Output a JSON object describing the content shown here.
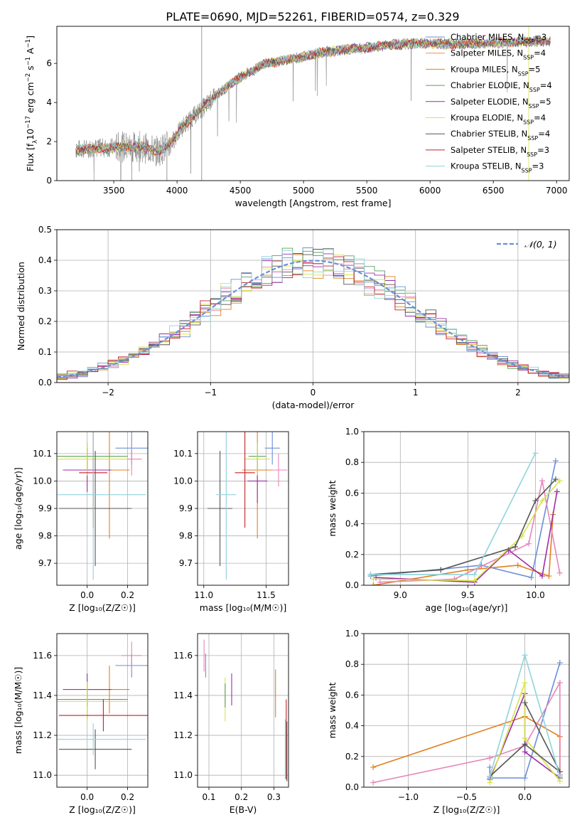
{
  "title": "PLATE=0690, MJD=52261, FIBERID=0574, z=0.329",
  "colors": {
    "c1": "#6a8fd6",
    "c2": "#f28e5a",
    "c3": "#e0801f",
    "c4": "#5c9f5c",
    "c5": "#9a2fa8",
    "c6": "#d7e34a",
    "c7": "#555555",
    "c8": "#c0202a",
    "c9": "#8fd3dc",
    "pink": "#e585b8",
    "gray": "#7f7f7f"
  },
  "chart_data": [
    {
      "type": "line",
      "xlabel": "wavelength [Angstrom, rest frame]",
      "ylabel_parts": {
        "a": "Flux [f",
        "sub": "λ",
        "b": "10",
        "sup1": "−17",
        "c": " erg cm",
        "sup2": "−2",
        "d": " s",
        "sup3": "−1",
        "e": " A",
        "sup4": "−1",
        "f": "]"
      },
      "xlim": [
        3050,
        7100
      ],
      "ylim": [
        0,
        7.9
      ],
      "xticks": [
        "3500",
        "4000",
        "4500",
        "5000",
        "5500",
        "6000",
        "6500",
        "7000"
      ],
      "yticks": [
        "0",
        "2",
        "4",
        "6"
      ],
      "legend_position": "right",
      "legend": [
        {
          "name": "Chabrier MILES, N",
          "sub": "SSP",
          "tail": "=3"
        },
        {
          "name": "Salpeter MILES, N",
          "sub": "SSP",
          "tail": "=4"
        },
        {
          "name": "Kroupa MILES, N",
          "sub": "SSP",
          "tail": "=5"
        },
        {
          "name": "Chabrier ELODIE, N",
          "sub": "SSP",
          "tail": "=4"
        },
        {
          "name": "Salpeter ELODIE, N",
          "sub": "SSP",
          "tail": "=5"
        },
        {
          "name": "Kroupa ELODIE, N",
          "sub": "SSP",
          "tail": "=4"
        },
        {
          "name": "Chabrier STELIB, N",
          "sub": "SSP",
          "tail": "=4"
        },
        {
          "name": "Salpeter STELIB, N",
          "sub": "SSP",
          "tail": "=3"
        },
        {
          "name": "Kroupa STELIB, N",
          "sub": "SSP",
          "tail": "=3"
        }
      ],
      "continuum": [
        [
          3200,
          1.6
        ],
        [
          3500,
          1.7
        ],
        [
          3700,
          1.75
        ],
        [
          3850,
          1.5
        ],
        [
          3950,
          1.9
        ],
        [
          4050,
          2.8
        ],
        [
          4200,
          3.7
        ],
        [
          4350,
          4.6
        ],
        [
          4500,
          5.3
        ],
        [
          4700,
          6.0
        ],
        [
          4900,
          6.2
        ],
        [
          5100,
          6.5
        ],
        [
          5300,
          6.7
        ],
        [
          5500,
          6.8
        ],
        [
          5700,
          6.95
        ],
        [
          5900,
          7.05
        ],
        [
          6100,
          7.0
        ],
        [
          6300,
          7.0
        ],
        [
          6500,
          7.05
        ],
        [
          6700,
          7.1
        ],
        [
          6950,
          7.15
        ]
      ]
    },
    {
      "type": "line",
      "xlabel": "(data-model)/error",
      "ylabel": "Normed distribution",
      "xlim": [
        -2.5,
        2.5
      ],
      "ylim": [
        0,
        0.5
      ],
      "xticks": [
        "−2",
        "−1",
        "0",
        "1",
        "2"
      ],
      "yticks": [
        "0.0",
        "0.1",
        "0.2",
        "0.3",
        "0.4",
        "0.5"
      ],
      "legend_label": "𝒩(0, 1)",
      "legend_position": "top-right",
      "gaussian": {
        "mean": 0,
        "sigma": 1
      }
    },
    {
      "type": "scatter",
      "xlabel": "Z [log₁₀(Z/Z☉)]",
      "ylabel": "age  [log₁₀(age/yr)]",
      "xlim": [
        -0.15,
        0.3
      ],
      "ylim": [
        9.62,
        10.18
      ],
      "xticks": [
        "0.0",
        "0.2"
      ],
      "yticks": [
        "9.7",
        "9.8",
        "9.9",
        "10.0",
        "10.1"
      ],
      "points": [
        {
          "x": 0.22,
          "y": 10.12,
          "xe": 0.08,
          "ye": 0.06,
          "c": "c1"
        },
        {
          "x": 0.22,
          "y": 10.08,
          "xe": 0.05,
          "ye": 0.06,
          "c": "pink"
        },
        {
          "x": 0.11,
          "y": 10.04,
          "xe": 0.1,
          "ye": 0.25,
          "c": "c3"
        },
        {
          "x": 0.0,
          "y": 10.09,
          "xe": 0.2,
          "ye": 0.05,
          "c": "c4"
        },
        {
          "x": 0.0,
          "y": 10.04,
          "xe": 0.12,
          "ye": 0.08,
          "c": "c5"
        },
        {
          "x": 0.0,
          "y": 10.08,
          "xe": 0.2,
          "ye": 0.06,
          "c": "c6"
        },
        {
          "x": 0.04,
          "y": 9.9,
          "xe": 0.18,
          "ye": 0.21,
          "c": "c7"
        },
        {
          "x": 0.03,
          "y": 10.03,
          "xe": 0.07,
          "ye": 0.2,
          "c": "c8"
        },
        {
          "x": 0.03,
          "y": 9.95,
          "xe": 0.26,
          "ye": 0.31,
          "c": "c9"
        }
      ]
    },
    {
      "type": "scatter",
      "xlabel": "mass [log₁₀(M/M☉)]",
      "ylabel": "",
      "xlim": [
        10.95,
        11.68
      ],
      "ylim": [
        9.62,
        10.18
      ],
      "xticks": [
        "11.0",
        "11.5"
      ],
      "yticks": [
        "9.7",
        "9.8",
        "9.9",
        "10.0",
        "10.1"
      ],
      "points": [
        {
          "x": 11.55,
          "y": 10.12,
          "xe": 0.06,
          "ye": 0.06,
          "c": "c1"
        },
        {
          "x": 11.6,
          "y": 10.04,
          "xe": 0.07,
          "ye": 0.06,
          "c": "pink"
        },
        {
          "x": 11.43,
          "y": 10.04,
          "xe": 0.12,
          "ye": 0.25,
          "c": "c3"
        },
        {
          "x": 11.43,
          "y": 10.09,
          "xe": 0.07,
          "ye": 0.05,
          "c": "c4"
        },
        {
          "x": 11.43,
          "y": 10.0,
          "xe": 0.08,
          "ye": 0.08,
          "c": "c5"
        },
        {
          "x": 11.43,
          "y": 10.08,
          "xe": 0.1,
          "ye": 0.06,
          "c": "c6"
        },
        {
          "x": 11.13,
          "y": 9.9,
          "xe": 0.1,
          "ye": 0.21,
          "c": "c7"
        },
        {
          "x": 11.33,
          "y": 10.03,
          "xe": 0.08,
          "ye": 0.2,
          "c": "c8"
        },
        {
          "x": 11.18,
          "y": 9.95,
          "xe": 0.08,
          "ye": 0.31,
          "c": "c9"
        }
      ]
    },
    {
      "type": "line",
      "xlabel": "age  [log₁₀(age/yr)]",
      "ylabel": "mass weight",
      "xlim": [
        8.73,
        10.25
      ],
      "ylim": [
        0,
        1
      ],
      "xticks": [
        "9.0",
        "9.5",
        "10.0"
      ],
      "yticks": [
        "0.0",
        "0.2",
        "0.4",
        "0.6",
        "0.8",
        "1.0"
      ],
      "series": [
        {
          "c": "c1",
          "pts": [
            [
              8.78,
              0.06
            ],
            [
              9.6,
              0.13
            ],
            [
              9.97,
              0.05
            ],
            [
              10.15,
              0.81
            ]
          ]
        },
        {
          "c": "c3",
          "pts": [
            [
              8.8,
              0.0
            ],
            [
              9.5,
              0.1
            ],
            [
              9.87,
              0.13
            ],
            [
              10.1,
              0.06
            ],
            [
              10.13,
              0.46
            ]
          ]
        },
        {
          "c": "pink",
          "pts": [
            [
              8.85,
              0.02
            ],
            [
              9.4,
              0.04
            ],
            [
              9.95,
              0.27
            ],
            [
              10.05,
              0.68
            ],
            [
              10.18,
              0.08
            ]
          ]
        },
        {
          "c": "c5",
          "pts": [
            [
              8.82,
              0.05
            ],
            [
              9.55,
              0.02
            ],
            [
              9.8,
              0.23
            ],
            [
              10.05,
              0.06
            ],
            [
              10.16,
              0.61
            ]
          ]
        },
        {
          "c": "c6",
          "pts": [
            [
              8.8,
              0.04
            ],
            [
              9.55,
              0.03
            ],
            [
              9.9,
              0.32
            ],
            [
              10.05,
              0.55
            ],
            [
              10.18,
              0.68
            ]
          ]
        },
        {
          "c": "c7",
          "pts": [
            [
              8.78,
              0.07
            ],
            [
              9.3,
              0.1
            ],
            [
              9.85,
              0.25
            ],
            [
              10.0,
              0.55
            ],
            [
              10.15,
              0.69
            ]
          ]
        },
        {
          "c": "c9",
          "pts": [
            [
              8.78,
              0.07
            ],
            [
              9.55,
              0.07
            ],
            [
              10.0,
              0.86
            ]
          ]
        }
      ]
    },
    {
      "type": "scatter",
      "xlabel": "Z [log₁₀(Z/Z☉)]",
      "ylabel": "mass [log₁₀(M/M☉)]",
      "xlim": [
        -0.15,
        0.3
      ],
      "ylim": [
        10.94,
        11.71
      ],
      "xticks": [
        "0.0",
        "0.2"
      ],
      "yticks": [
        "11.0",
        "11.2",
        "11.4",
        "11.6"
      ],
      "points": [
        {
          "x": 0.22,
          "y": 11.55,
          "xe": 0.08,
          "ye": 0.06,
          "c": "c1"
        },
        {
          "x": 0.22,
          "y": 11.6,
          "xe": 0.05,
          "ye": 0.07,
          "c": "pink"
        },
        {
          "x": 0.11,
          "y": 11.43,
          "xe": 0.1,
          "ye": 0.12,
          "c": "c3"
        },
        {
          "x": 0.0,
          "y": 11.38,
          "xe": 0.2,
          "ye": 0.1,
          "c": "c4"
        },
        {
          "x": 0.0,
          "y": 11.43,
          "xe": 0.12,
          "ye": 0.08,
          "c": "c5"
        },
        {
          "x": 0.0,
          "y": 11.37,
          "xe": 0.2,
          "ye": 0.1,
          "c": "c6"
        },
        {
          "x": 0.04,
          "y": 11.13,
          "xe": 0.18,
          "ye": 0.1,
          "c": "c7"
        },
        {
          "x": 0.08,
          "y": 11.3,
          "xe": 0.22,
          "ye": 0.08,
          "c": "c8"
        },
        {
          "x": 0.03,
          "y": 11.18,
          "xe": 0.26,
          "ye": 0.08,
          "c": "c9"
        }
      ]
    },
    {
      "type": "scatter",
      "xlabel": "E(B-V)",
      "ylabel": "",
      "xlim": [
        0.065,
        0.345
      ],
      "ylim": [
        10.94,
        11.71
      ],
      "xticks": [
        "0.1",
        "0.2",
        "0.3"
      ],
      "yticks": [
        "11.0",
        "11.2",
        "11.4",
        "11.6"
      ],
      "points": [
        {
          "x": 0.085,
          "y": 11.6,
          "ye": 0.08,
          "c": "pink"
        },
        {
          "x": 0.09,
          "y": 11.55,
          "ye": 0.06,
          "c": "c1"
        },
        {
          "x": 0.15,
          "y": 11.38,
          "ye": 0.11,
          "c": "c6"
        },
        {
          "x": 0.15,
          "y": 11.4,
          "ye": 0.06,
          "c": "c4"
        },
        {
          "x": 0.17,
          "y": 11.43,
          "ye": 0.08,
          "c": "c5"
        },
        {
          "x": 0.305,
          "y": 11.41,
          "ye": 0.12,
          "c": "c3"
        },
        {
          "x": 0.335,
          "y": 11.13,
          "ye": 0.15,
          "c": "c9"
        },
        {
          "x": 0.338,
          "y": 11.18,
          "ye": 0.2,
          "c": "c8"
        },
        {
          "x": 0.34,
          "y": 11.12,
          "ye": 0.15,
          "c": "c7"
        }
      ]
    },
    {
      "type": "line",
      "xlabel": "Z [log₁₀(Z/Z☉)]",
      "ylabel": "mass weight",
      "xlim": [
        -1.38,
        0.38
      ],
      "ylim": [
        0,
        1
      ],
      "xticks": [
        "−1.0",
        "−0.5",
        "0.0"
      ],
      "yticks": [
        "0.0",
        "0.2",
        "0.4",
        "0.6",
        "0.8",
        "1.0"
      ],
      "series": [
        {
          "c": "c1",
          "pts": [
            [
              -0.3,
              0.13
            ],
            [
              -0.3,
              0.06
            ],
            [
              0.0,
              0.06
            ],
            [
              0.3,
              0.81
            ]
          ]
        },
        {
          "c": "c3",
          "pts": [
            [
              -1.3,
              0.13
            ],
            [
              0.0,
              0.46
            ],
            [
              0.3,
              0.33
            ],
            [
              0.3,
              0.06
            ]
          ]
        },
        {
          "c": "pink",
          "pts": [
            [
              -1.3,
              0.03
            ],
            [
              -0.3,
              0.19
            ],
            [
              0.0,
              0.27
            ],
            [
              0.3,
              0.68
            ],
            [
              0.3,
              0.08
            ]
          ]
        },
        {
          "c": "c5",
          "pts": [
            [
              -0.3,
              0.05
            ],
            [
              0.0,
              0.61
            ],
            [
              0.0,
              0.23
            ],
            [
              0.3,
              0.06
            ]
          ]
        },
        {
          "c": "c6",
          "pts": [
            [
              -0.3,
              0.03
            ],
            [
              0.0,
              0.68
            ],
            [
              0.0,
              0.32
            ],
            [
              0.3,
              0.04
            ]
          ]
        },
        {
          "c": "c7",
          "pts": [
            [
              -0.3,
              0.07
            ],
            [
              0.0,
              0.28
            ],
            [
              0.3,
              0.1
            ],
            [
              0.0,
              0.55
            ]
          ]
        },
        {
          "c": "c9",
          "pts": [
            [
              -0.3,
              0.07
            ],
            [
              0.0,
              0.86
            ],
            [
              0.3,
              0.07
            ]
          ]
        }
      ]
    }
  ]
}
